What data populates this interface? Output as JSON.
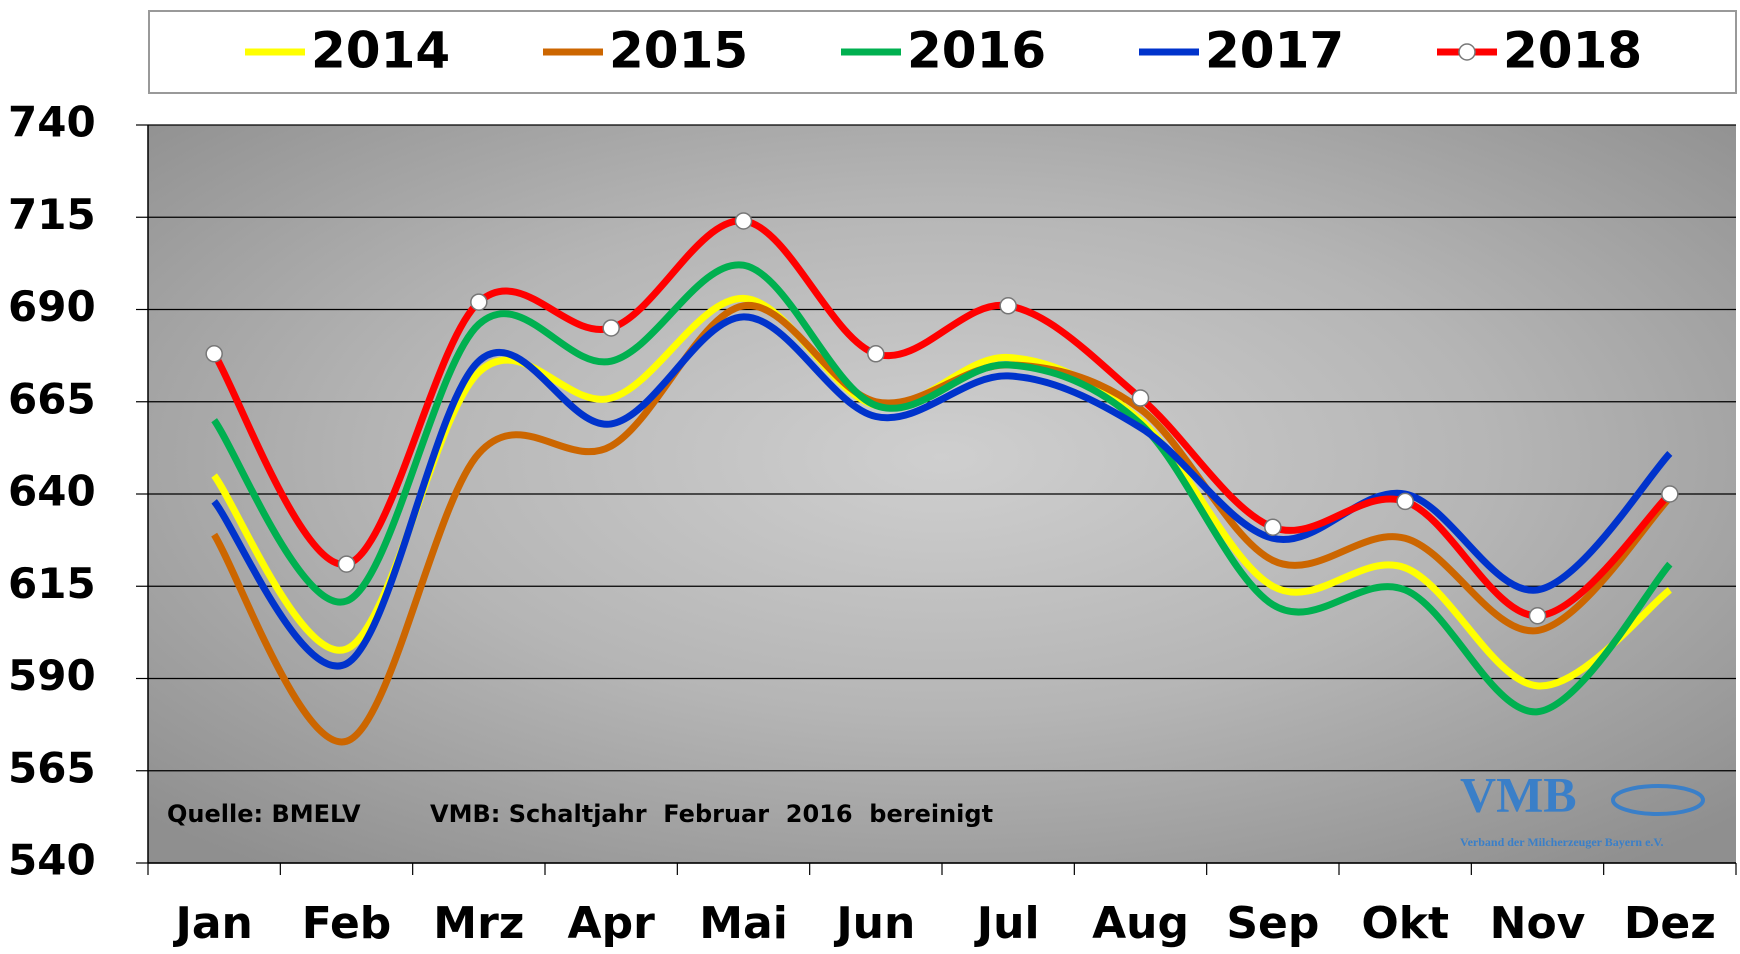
{
  "chart_data": {
    "type": "line",
    "categories": [
      "Jan",
      "Feb",
      "Mrz",
      "Apr",
      "Mai",
      "Jun",
      "Jul",
      "Aug",
      "Sep",
      "Okt",
      "Nov",
      "Dez"
    ],
    "series": [
      {
        "name": "2014",
        "color": "#ffff00",
        "values": [
          645,
          598,
          673,
          666,
          693,
          664,
          677,
          660,
          615,
          620,
          588,
          614
        ]
      },
      {
        "name": "2015",
        "color": "#cc6600",
        "values": [
          629,
          573,
          651,
          653,
          691,
          665,
          675,
          663,
          622,
          628,
          603,
          639
        ]
      },
      {
        "name": "2016",
        "color": "#00b050",
        "values": [
          660,
          611,
          686,
          676,
          702,
          664,
          675,
          659,
          610,
          614,
          581,
          621
        ]
      },
      {
        "name": "2017",
        "color": "#0033cc",
        "values": [
          638,
          594,
          676,
          659,
          688,
          661,
          672,
          658,
          628,
          640,
          614,
          651
        ]
      },
      {
        "name": "2018",
        "color": "#ff0000",
        "markers": true,
        "values": [
          678,
          621,
          692,
          685,
          714,
          678,
          691,
          666,
          631,
          638,
          607,
          640
        ]
      }
    ],
    "ylim": [
      540,
      740
    ],
    "yticks": [
      540,
      565,
      590,
      615,
      640,
      665,
      690,
      715,
      740
    ],
    "grid": true,
    "smooth": true,
    "legend": "top",
    "annotations": [
      "Quelle: BMELV",
      "VMB: Schaltjahr  Februar  2016  bereinigt"
    ],
    "logo": {
      "title": "VMB",
      "subtitle": "Verband der Milcherzeuger Bayern e.V."
    }
  }
}
